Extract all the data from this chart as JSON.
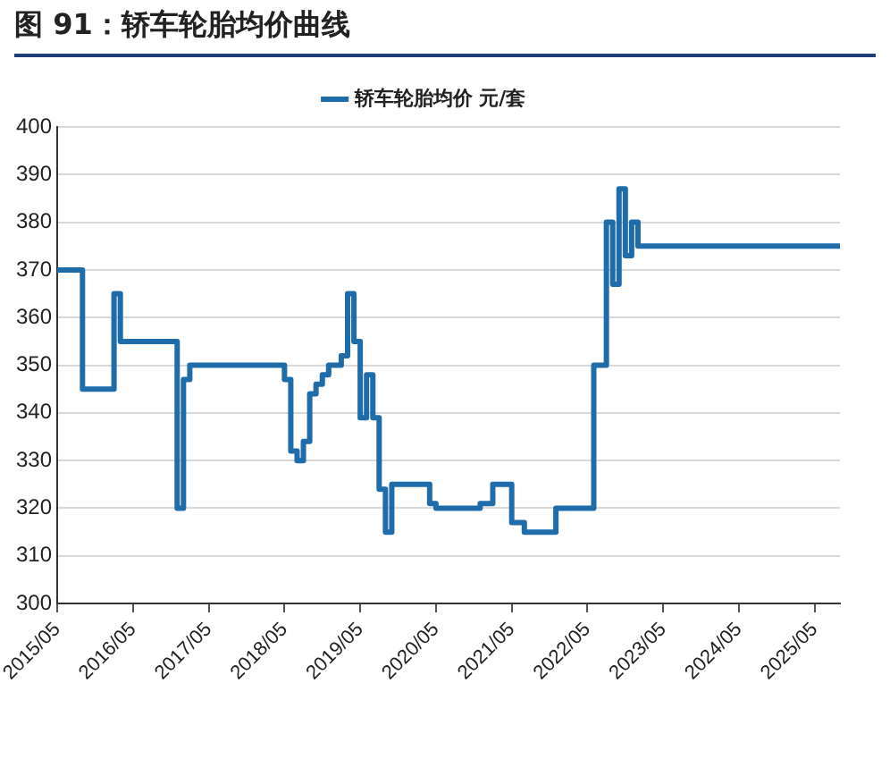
{
  "chart_data": {
    "type": "step",
    "title": "图 91：轿车轮胎均价曲线",
    "series": [
      {
        "name": "轿车轮胎均价 元/套",
        "color": "#1f6cab",
        "x": [
          "2015-05",
          "2015-09",
          "2016-02",
          "2016-03",
          "2016-12",
          "2017-01",
          "2017-02",
          "2018-05",
          "2018-06",
          "2018-07",
          "2018-08",
          "2018-09",
          "2018-10",
          "2018-11",
          "2018-12",
          "2019-02",
          "2019-03",
          "2019-04",
          "2019-05",
          "2019-06",
          "2019-07",
          "2019-08",
          "2019-09",
          "2019-10",
          "2020-04",
          "2020-05",
          "2020-12",
          "2021-02",
          "2021-05",
          "2021-07",
          "2021-12",
          "2022-06",
          "2022-08",
          "2022-09",
          "2022-10",
          "2022-11",
          "2022-12",
          "2023-01",
          "2025-09"
        ],
        "values": [
          370,
          345,
          365,
          355,
          320,
          347,
          350,
          347,
          332,
          330,
          334,
          344,
          346,
          348,
          350,
          352,
          365,
          355,
          339,
          348,
          339,
          324,
          315,
          325,
          321,
          320,
          321,
          325,
          317,
          315,
          320,
          350,
          380,
          367,
          387,
          373,
          380,
          375,
          375
        ]
      }
    ],
    "xlim": [
      "2015-05",
      "2025-09"
    ],
    "xticks": [
      {
        "value": "2015-05",
        "label": "2015/05"
      },
      {
        "value": "2016-05",
        "label": "2016/05"
      },
      {
        "value": "2017-05",
        "label": "2017/05"
      },
      {
        "value": "2018-05",
        "label": "2018/05"
      },
      {
        "value": "2019-05",
        "label": "2019/05"
      },
      {
        "value": "2020-05",
        "label": "2020/05"
      },
      {
        "value": "2021-05",
        "label": "2021/05"
      },
      {
        "value": "2022-05",
        "label": "2022/05"
      },
      {
        "value": "2023-05",
        "label": "2023/05"
      },
      {
        "value": "2024-05",
        "label": "2024/05"
      },
      {
        "value": "2025-05",
        "label": "2025/05"
      }
    ],
    "ylim": [
      300,
      400
    ],
    "yticks": [
      300,
      310,
      320,
      330,
      340,
      350,
      360,
      370,
      380,
      390,
      400
    ],
    "grid": "y",
    "legend": "top",
    "marker": "none",
    "line_style": "solid"
  }
}
